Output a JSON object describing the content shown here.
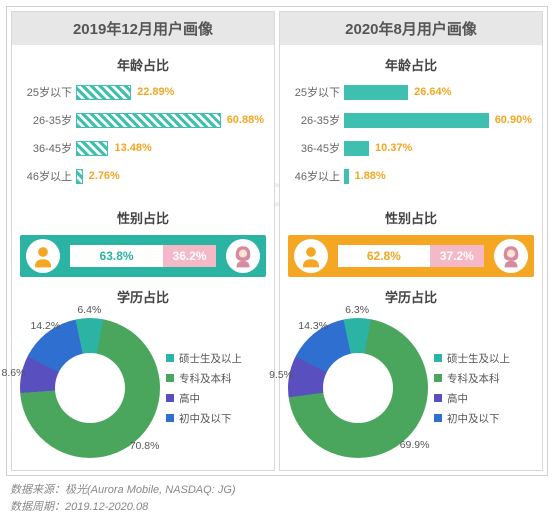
{
  "watermark": "URORA",
  "panels": [
    {
      "title": "2019年12月用户画像",
      "age_title": "年龄占比",
      "bar_style": "hatched",
      "age": [
        {
          "label": "25岁以下",
          "value": 22.89,
          "text": "22.89%"
        },
        {
          "label": "26-35岁",
          "value": 60.88,
          "text": "60.88%"
        },
        {
          "label": "36-45岁",
          "value": 13.48,
          "text": "13.48%"
        },
        {
          "label": "46岁以上",
          "value": 2.76,
          "text": "2.76%"
        }
      ],
      "gender_title": "性别占比",
      "gender_band_color": "teal",
      "gender": {
        "m": 63.8,
        "m_text": "63.8%",
        "f": 36.2,
        "f_text": "36.2%"
      },
      "edu_title": "学历占比",
      "edu": [
        {
          "label": "硕士生及以上",
          "value": 6.4,
          "text": "6.4%",
          "color": "#2bb3a3"
        },
        {
          "label": "专科及本科",
          "value": 70.8,
          "text": "70.8%",
          "color": "#4aa65c"
        },
        {
          "label": "高中",
          "value": 8.6,
          "text": "8.6%",
          "color": "#5a4fbf"
        },
        {
          "label": "初中及以下",
          "value": 14.2,
          "text": "14.2%",
          "color": "#2f6fd0"
        }
      ]
    },
    {
      "title": "2020年8月用户画像",
      "age_title": "年龄占比",
      "bar_style": "solid",
      "age": [
        {
          "label": "25岁以下",
          "value": 26.64,
          "text": "26.64%"
        },
        {
          "label": "26-35岁",
          "value": 60.9,
          "text": "60.90%"
        },
        {
          "label": "36-45岁",
          "value": 10.37,
          "text": "10.37%"
        },
        {
          "label": "46岁以上",
          "value": 1.88,
          "text": "1.88%"
        }
      ],
      "gender_title": "性别占比",
      "gender_band_color": "orange",
      "gender": {
        "m": 62.8,
        "m_text": "62.8%",
        "f": 37.2,
        "f_text": "37.2%"
      },
      "edu_title": "学历占比",
      "edu": [
        {
          "label": "硕士生及以上",
          "value": 6.3,
          "text": "6.3%",
          "color": "#2bb3a3"
        },
        {
          "label": "专科及本科",
          "value": 69.9,
          "text": "69.9%",
          "color": "#4aa65c"
        },
        {
          "label": "高中",
          "value": 9.5,
          "text": "9.5%",
          "color": "#5a4fbf"
        },
        {
          "label": "初中及以下",
          "value": 14.3,
          "text": "14.3%",
          "color": "#2f6fd0"
        }
      ]
    }
  ],
  "age_bar_color": "#3fbfb0",
  "age_value_color": "#f5a623",
  "male_avatar_color": "#f5a623",
  "female_avatar_color": "#d88aa0",
  "footer_source": "数据来源：极光(Aurora Mobile, NASDAQ: JG)",
  "footer_period": "数据周期：2019.12-2020.08"
}
